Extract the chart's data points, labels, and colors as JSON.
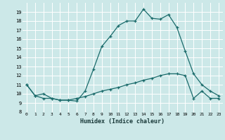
{
  "xlabel": "Humidex (Indice chaleur)",
  "ylabel": "",
  "xlim": [
    -0.5,
    23.5
  ],
  "ylim": [
    8,
    20
  ],
  "yticks": [
    8,
    9,
    10,
    11,
    12,
    13,
    14,
    15,
    16,
    17,
    18,
    19
  ],
  "xticks": [
    0,
    1,
    2,
    3,
    4,
    5,
    6,
    7,
    8,
    9,
    10,
    11,
    12,
    13,
    14,
    15,
    16,
    17,
    18,
    19,
    20,
    21,
    22,
    23
  ],
  "xtick_labels": [
    "0",
    "1",
    "2",
    "3",
    "4",
    "5",
    "6",
    "7",
    "8",
    "9",
    "10",
    "11",
    "12",
    "13",
    "14",
    "15",
    "16",
    "17",
    "18",
    "19",
    "20",
    "21",
    "22",
    "23"
  ],
  "bg_color": "#cce8e8",
  "grid_color": "#ffffff",
  "line_color": "#1a6b6b",
  "curve1_x": [
    0,
    1,
    2,
    3,
    4,
    5,
    6,
    7,
    8,
    9,
    10,
    11,
    12,
    13,
    14,
    15,
    16,
    17,
    18,
    19,
    20,
    21,
    22,
    23
  ],
  "curve1_y": [
    11.0,
    9.8,
    10.0,
    9.5,
    9.3,
    9.3,
    9.2,
    10.3,
    12.7,
    15.2,
    16.3,
    17.5,
    18.0,
    18.0,
    19.3,
    18.3,
    18.2,
    18.7,
    17.3,
    14.7,
    12.2,
    11.0,
    10.3,
    9.8
  ],
  "curve2_x": [
    0,
    1,
    2,
    3,
    4,
    5,
    6,
    7,
    8,
    9,
    10,
    11,
    12,
    13,
    14,
    15,
    16,
    17,
    18,
    19,
    20,
    21,
    22,
    23
  ],
  "curve2_y": [
    11.0,
    9.8,
    9.5,
    9.5,
    9.3,
    9.3,
    9.5,
    9.7,
    10.0,
    10.3,
    10.5,
    10.7,
    11.0,
    11.2,
    11.5,
    11.7,
    12.0,
    12.2,
    12.2,
    12.0,
    9.5,
    10.3,
    9.5,
    9.5
  ]
}
